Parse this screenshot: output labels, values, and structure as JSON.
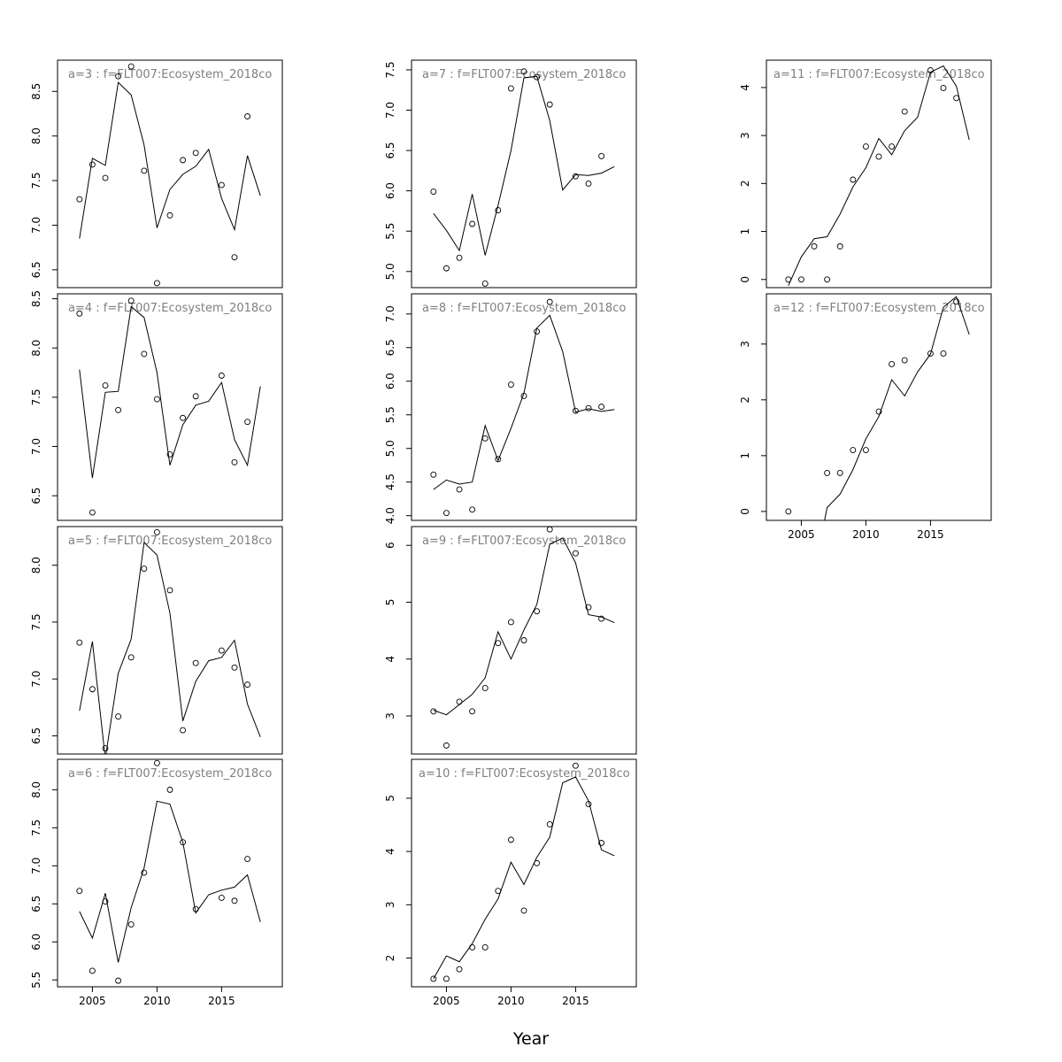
{
  "xlabel": "Year",
  "chart_data": [
    {
      "type": "line",
      "title": "a=3  :  f=FLT007:Ecosystem_2018co",
      "ylim": [
        6.3,
        8.85
      ],
      "yticks": [
        "6.5",
        "7.0",
        "7.5",
        "8.0",
        "8.5"
      ],
      "xlim": [
        2002.3,
        2019.7
      ],
      "xticks": [],
      "series": [
        {
          "kind": "line",
          "x": [
            2004,
            2005,
            2006,
            2007,
            2008,
            2009,
            2010,
            2011,
            2012,
            2013,
            2014,
            2015,
            2016,
            2017,
            2018
          ],
          "y": [
            6.85,
            7.75,
            7.67,
            8.6,
            8.46,
            7.9,
            6.97,
            7.4,
            7.57,
            7.66,
            7.85,
            7.3,
            6.95,
            7.78,
            7.33
          ]
        },
        {
          "kind": "points",
          "x": [
            2004,
            2005,
            2006,
            2007,
            2008,
            2009,
            2010,
            2011,
            2012,
            2013,
            2015,
            2016,
            2017
          ],
          "y": [
            7.29,
            7.68,
            7.53,
            8.67,
            8.78,
            7.61,
            6.35,
            7.11,
            7.73,
            7.81,
            7.45,
            6.64,
            8.22
          ]
        }
      ]
    },
    {
      "type": "line",
      "title": "a=4  :  f=FLT007:Ecosystem_2018co",
      "ylim": [
        6.25,
        8.55
      ],
      "yticks": [
        "6.5",
        "7.0",
        "7.5",
        "8.0",
        "8.5"
      ],
      "xlim": [
        2002.3,
        2019.7
      ],
      "xticks": [],
      "series": [
        {
          "kind": "line",
          "x": [
            2004,
            2005,
            2006,
            2007,
            2008,
            2009,
            2010,
            2011,
            2012,
            2013,
            2014,
            2015,
            2016,
            2017,
            2018
          ],
          "y": [
            7.78,
            6.68,
            7.55,
            7.56,
            8.42,
            8.31,
            7.75,
            6.81,
            7.22,
            7.42,
            7.46,
            7.65,
            7.07,
            6.81,
            7.61
          ]
        },
        {
          "kind": "points",
          "x": [
            2004,
            2005,
            2006,
            2007,
            2008,
            2009,
            2010,
            2011,
            2012,
            2013,
            2015,
            2016,
            2017
          ],
          "y": [
            8.35,
            6.33,
            7.62,
            7.37,
            8.48,
            7.94,
            7.48,
            6.92,
            7.29,
            7.51,
            7.72,
            6.84,
            7.25
          ]
        }
      ]
    },
    {
      "type": "line",
      "title": "a=5  :  f=FLT007:Ecosystem_2018co",
      "ylim": [
        6.34,
        8.34
      ],
      "yticks": [
        "6.5",
        "7.0",
        "7.5",
        "8.0"
      ],
      "xlim": [
        2002.3,
        2019.7
      ],
      "xticks": [],
      "series": [
        {
          "kind": "line",
          "x": [
            2004,
            2005,
            2006,
            2007,
            2008,
            2009,
            2010,
            2011,
            2012,
            2013,
            2014,
            2015,
            2016,
            2017,
            2018
          ],
          "y": [
            6.72,
            7.33,
            6.3,
            7.05,
            7.35,
            8.2,
            8.09,
            7.58,
            6.63,
            6.98,
            7.16,
            7.19,
            7.34,
            6.78,
            6.49
          ]
        },
        {
          "kind": "points",
          "x": [
            2004,
            2005,
            2006,
            2007,
            2008,
            2009,
            2010,
            2011,
            2012,
            2013,
            2015,
            2016,
            2017
          ],
          "y": [
            7.32,
            6.91,
            6.39,
            6.67,
            7.19,
            7.97,
            8.29,
            7.78,
            6.55,
            7.14,
            7.25,
            7.1,
            6.95
          ]
        }
      ]
    },
    {
      "type": "line",
      "title": "a=6  :  f=FLT007:Ecosystem_2018co",
      "ylim": [
        5.41,
        8.4
      ],
      "yticks": [
        "5.5",
        "6.0",
        "6.5",
        "7.0",
        "7.5",
        "8.0"
      ],
      "xlim": [
        2002.3,
        2019.7
      ],
      "xticks": [
        "2005",
        "2010",
        "2015"
      ],
      "series": [
        {
          "kind": "line",
          "x": [
            2004,
            2005,
            2006,
            2007,
            2008,
            2009,
            2010,
            2011,
            2012,
            2013,
            2014,
            2015,
            2016,
            2017,
            2018
          ],
          "y": [
            6.4,
            6.05,
            6.64,
            5.73,
            6.45,
            6.97,
            7.85,
            7.81,
            7.31,
            6.38,
            6.62,
            6.68,
            6.72,
            6.88,
            6.26
          ]
        },
        {
          "kind": "points",
          "x": [
            2004,
            2005,
            2006,
            2007,
            2008,
            2009,
            2010,
            2011,
            2012,
            2013,
            2015,
            2016,
            2017
          ],
          "y": [
            6.67,
            5.62,
            6.53,
            5.49,
            6.23,
            6.91,
            8.35,
            8.0,
            7.31,
            6.43,
            6.58,
            6.54,
            7.09
          ]
        }
      ]
    },
    {
      "type": "line",
      "title": "a=7  :  f=FLT007:Ecosystem_2018co",
      "ylim": [
        4.8,
        7.62
      ],
      "yticks": [
        "5.0",
        "5.5",
        "6.0",
        "6.5",
        "7.0",
        "7.5"
      ],
      "xlim": [
        2002.3,
        2019.7
      ],
      "xticks": [],
      "series": [
        {
          "kind": "line",
          "x": [
            2004,
            2005,
            2006,
            2007,
            2008,
            2009,
            2010,
            2011,
            2012,
            2013,
            2014,
            2015,
            2016,
            2017,
            2018
          ],
          "y": [
            5.72,
            5.51,
            5.26,
            5.96,
            5.2,
            5.82,
            6.5,
            7.4,
            7.42,
            6.87,
            6.01,
            6.2,
            6.19,
            6.22,
            6.3
          ]
        },
        {
          "kind": "points",
          "x": [
            2004,
            2005,
            2006,
            2007,
            2008,
            2009,
            2010,
            2011,
            2012,
            2013,
            2015,
            2016,
            2017
          ],
          "y": [
            5.99,
            5.04,
            5.17,
            5.59,
            4.85,
            5.76,
            7.27,
            7.48,
            7.41,
            7.07,
            6.18,
            6.09,
            6.43
          ]
        }
      ]
    },
    {
      "type": "line",
      "title": "a=8  :  f=FLT007:Ecosystem_2018co",
      "ylim": [
        3.93,
        7.3
      ],
      "yticks": [
        "4.0",
        "4.5",
        "5.0",
        "5.5",
        "6.0",
        "6.5",
        "7.0"
      ],
      "xlim": [
        2002.3,
        2019.7
      ],
      "xticks": [],
      "series": [
        {
          "kind": "line",
          "x": [
            2004,
            2005,
            2006,
            2007,
            2008,
            2009,
            2010,
            2011,
            2012,
            2013,
            2014,
            2015,
            2016,
            2017,
            2018
          ],
          "y": [
            4.39,
            4.53,
            4.47,
            4.5,
            5.34,
            4.82,
            5.3,
            5.82,
            6.79,
            6.98,
            6.44,
            5.54,
            5.59,
            5.55,
            5.58
          ]
        },
        {
          "kind": "points",
          "x": [
            2004,
            2005,
            2006,
            2007,
            2008,
            2009,
            2010,
            2011,
            2012,
            2013,
            2015,
            2016,
            2017
          ],
          "y": [
            4.61,
            4.04,
            4.39,
            4.09,
            5.15,
            4.84,
            5.95,
            5.78,
            6.74,
            7.18,
            5.56,
            5.6,
            5.62
          ]
        }
      ]
    },
    {
      "type": "line",
      "title": "a=9  :  f=FLT007:Ecosystem_2018co",
      "ylim": [
        2.33,
        6.33
      ],
      "yticks": [
        "3",
        "4",
        "5",
        "6"
      ],
      "xlim": [
        2002.3,
        2019.7
      ],
      "xticks": [],
      "series": [
        {
          "kind": "line",
          "x": [
            2004,
            2005,
            2006,
            2007,
            2008,
            2009,
            2010,
            2011,
            2012,
            2013,
            2014,
            2015,
            2016,
            2017,
            2018
          ],
          "y": [
            3.1,
            3.02,
            3.2,
            3.38,
            3.67,
            4.48,
            4.0,
            4.51,
            4.96,
            6.02,
            6.13,
            5.69,
            4.78,
            4.74,
            4.64
          ]
        },
        {
          "kind": "points",
          "x": [
            2004,
            2005,
            2006,
            2007,
            2008,
            2009,
            2010,
            2011,
            2012,
            2013,
            2015,
            2016,
            2017
          ],
          "y": [
            3.08,
            2.48,
            3.25,
            3.08,
            3.49,
            4.28,
            4.65,
            4.33,
            4.84,
            6.28,
            5.86,
            4.91,
            4.71
          ]
        }
      ]
    },
    {
      "type": "line",
      "title": "a=10  :  f=FLT007:Ecosystem_2018co",
      "ylim": [
        1.46,
        5.73
      ],
      "yticks": [
        "2",
        "3",
        "4",
        "5"
      ],
      "xlim": [
        2002.3,
        2019.7
      ],
      "xticks": [
        "2005",
        "2010",
        "2015"
      ],
      "series": [
        {
          "kind": "line",
          "x": [
            2004,
            2005,
            2006,
            2007,
            2008,
            2009,
            2010,
            2011,
            2012,
            2013,
            2014,
            2015,
            2016,
            2017,
            2018
          ],
          "y": [
            1.61,
            2.04,
            1.93,
            2.27,
            2.73,
            3.11,
            3.8,
            3.38,
            3.89,
            4.27,
            5.29,
            5.4,
            4.95,
            4.03,
            3.92
          ]
        },
        {
          "kind": "points",
          "x": [
            2004,
            2005,
            2006,
            2007,
            2008,
            2009,
            2010,
            2011,
            2012,
            2013,
            2015,
            2016,
            2017
          ],
          "y": [
            1.61,
            1.61,
            1.79,
            2.2,
            2.2,
            3.26,
            4.22,
            2.89,
            3.78,
            4.51,
            5.61,
            4.89,
            4.16
          ]
        }
      ]
    },
    {
      "type": "line",
      "title": "a=11  :  f=FLT007:Ecosystem_2018co",
      "ylim": [
        -0.17,
        4.57
      ],
      "yticks": [
        "0",
        "1",
        "2",
        "3",
        "4"
      ],
      "xlim": [
        2002.3,
        2019.7
      ],
      "xticks": [],
      "series": [
        {
          "kind": "line",
          "x": [
            2004,
            2005,
            2006,
            2007,
            2008,
            2009,
            2010,
            2011,
            2012,
            2013,
            2014,
            2015,
            2016,
            2017,
            2018
          ],
          "y": [
            -0.13,
            0.47,
            0.85,
            0.89,
            1.36,
            1.93,
            2.33,
            2.94,
            2.6,
            3.1,
            3.38,
            4.32,
            4.45,
            4.03,
            2.91
          ]
        },
        {
          "kind": "points",
          "x": [
            2004,
            2005,
            2006,
            2007,
            2008,
            2009,
            2010,
            2011,
            2012,
            2013,
            2015,
            2016,
            2017
          ],
          "y": [
            0.0,
            0.0,
            0.69,
            0.0,
            0.69,
            2.08,
            2.77,
            2.56,
            2.77,
            3.5,
            4.36,
            3.99,
            3.78
          ]
        }
      ]
    },
    {
      "type": "line",
      "title": "a=12  :  f=FLT007:Ecosystem_2018co",
      "ylim": [
        -0.16,
        3.9
      ],
      "yticks": [
        "0",
        "1",
        "2",
        "3"
      ],
      "xlim": [
        2002.3,
        2019.7
      ],
      "xticks": [
        "2005",
        "2010",
        "2015"
      ],
      "series": [
        {
          "kind": "line",
          "x": [
            2006.8,
            2007,
            2008,
            2009,
            2010,
            2011,
            2012,
            2013,
            2014,
            2015,
            2016,
            2017,
            2018
          ],
          "y": [
            -0.16,
            0.07,
            0.31,
            0.75,
            1.3,
            1.7,
            2.36,
            2.07,
            2.5,
            2.82,
            3.66,
            3.85,
            3.17
          ]
        },
        {
          "kind": "points",
          "x": [
            2004,
            2007,
            2008,
            2009,
            2010,
            2011,
            2012,
            2013,
            2015,
            2016,
            2017
          ],
          "y": [
            0.0,
            0.69,
            0.69,
            1.1,
            1.1,
            1.79,
            2.64,
            2.71,
            2.83,
            2.83,
            3.76
          ]
        }
      ]
    }
  ]
}
